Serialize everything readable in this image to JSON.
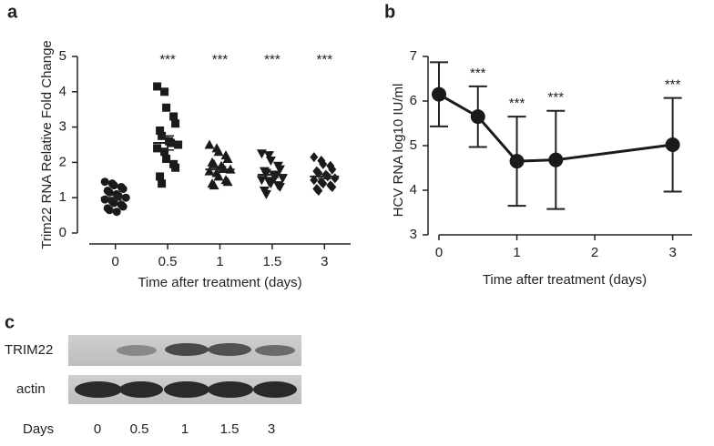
{
  "chart_data": [
    {
      "type": "scatter",
      "panel_label": "a",
      "y_label": "Trim22 RNA Relative Fold Change",
      "x_label": "Time after treatment (days)",
      "categories": [
        "0",
        "0.5",
        "1",
        "1.5",
        "3"
      ],
      "ylim": [
        0,
        5
      ],
      "yticks": [
        0,
        1,
        2,
        3,
        4,
        5
      ],
      "color": "#1a1a1a",
      "series": [
        {
          "marker": "circle",
          "mean": 1.0,
          "error": 0.07,
          "values": [
            1.45,
            1.4,
            1.35,
            1.3,
            1.25,
            1.2,
            1.15,
            1.1,
            1.05,
            1.0,
            0.95,
            0.9,
            0.85,
            0.8,
            0.75,
            0.7,
            0.65,
            0.6
          ]
        },
        {
          "marker": "square",
          "mean": 2.55,
          "error": 0.2,
          "values": [
            4.15,
            4.0,
            3.55,
            3.3,
            3.1,
            2.9,
            2.75,
            2.6,
            2.55,
            2.5,
            2.4,
            2.3,
            2.1,
            1.95,
            1.85,
            1.6,
            1.4
          ]
        },
        {
          "marker": "triangle",
          "mean": 1.8,
          "error": 0.08,
          "values": [
            2.5,
            2.4,
            2.3,
            2.2,
            2.1,
            2.0,
            1.95,
            1.9,
            1.85,
            1.8,
            1.75,
            1.7,
            1.6,
            1.5,
            1.45,
            1.4,
            1.35
          ]
        },
        {
          "marker": "triangle-down",
          "mean": 1.65,
          "error": 0.08,
          "values": [
            2.25,
            2.2,
            2.05,
            1.9,
            1.8,
            1.75,
            1.7,
            1.65,
            1.6,
            1.55,
            1.5,
            1.45,
            1.4,
            1.35,
            1.3,
            1.2,
            1.1
          ]
        },
        {
          "marker": "diamond",
          "mean": 1.6,
          "error": 0.06,
          "values": [
            2.15,
            2.05,
            1.95,
            1.9,
            1.8,
            1.75,
            1.7,
            1.65,
            1.6,
            1.55,
            1.5,
            1.45,
            1.4,
            1.35,
            1.3,
            1.25,
            1.2
          ]
        }
      ],
      "annotations": [
        {
          "x": "0.5",
          "text": "***"
        },
        {
          "x": "1",
          "text": "***"
        },
        {
          "x": "1.5",
          "text": "***"
        },
        {
          "x": "3",
          "text": "***"
        }
      ]
    },
    {
      "type": "line",
      "panel_label": "b",
      "y_label": "HCV RNA log10 IU/ml",
      "x_label": "Time after treatment (days)",
      "x": [
        0,
        0.5,
        1,
        1.5,
        3
      ],
      "values": [
        6.15,
        5.65,
        4.65,
        4.68,
        5.02
      ],
      "errors": [
        0.72,
        0.68,
        1.0,
        1.1,
        1.05
      ],
      "xlim": [
        0,
        3.25
      ],
      "xticks": [
        0,
        1,
        2,
        3
      ],
      "ylim": [
        3,
        7
      ],
      "yticks": [
        3,
        4,
        5,
        6,
        7
      ],
      "color": "#1a1a1a",
      "annotations": [
        {
          "x": 0.5,
          "text": "***"
        },
        {
          "x": 1,
          "text": "***"
        },
        {
          "x": 1.5,
          "text": "***"
        },
        {
          "x": 3,
          "text": "***"
        }
      ]
    }
  ],
  "blot": {
    "panel_label": "c",
    "rows": [
      "TRIM22",
      "actin"
    ],
    "x_label": "Days",
    "lanes": [
      "0",
      "0.5",
      "1",
      "1.5",
      "3"
    ]
  }
}
